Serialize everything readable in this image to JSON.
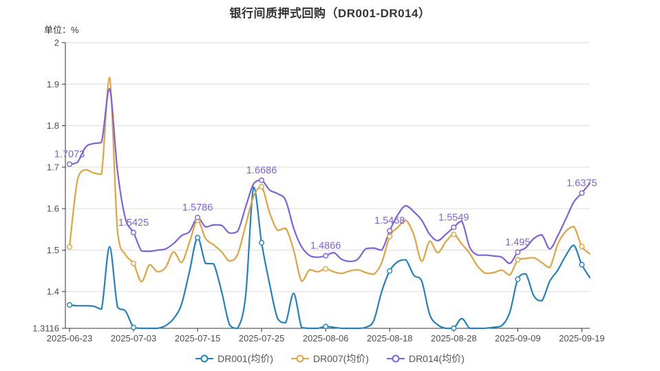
{
  "chart_data": {
    "type": "line",
    "title": "银行间质押式回购（DR001-DR014）",
    "unit_label": "单位：%",
    "grid": true,
    "legend_position": "bottom",
    "x": [
      "2025-06-23",
      "2025-06-24",
      "2025-06-25",
      "2025-06-26",
      "2025-06-27",
      "2025-06-30",
      "2025-07-01",
      "2025-07-02",
      "2025-07-03",
      "2025-07-04",
      "2025-07-07",
      "2025-07-08",
      "2025-07-09",
      "2025-07-10",
      "2025-07-11",
      "2025-07-14",
      "2025-07-15",
      "2025-07-16",
      "2025-07-17",
      "2025-07-18",
      "2025-07-21",
      "2025-07-22",
      "2025-07-23",
      "2025-07-24",
      "2025-07-25",
      "2025-07-28",
      "2025-07-29",
      "2025-07-30",
      "2025-07-31",
      "2025-08-01",
      "2025-08-04",
      "2025-08-05",
      "2025-08-06",
      "2025-08-07",
      "2025-08-08",
      "2025-08-11",
      "2025-08-12",
      "2025-08-13",
      "2025-08-14",
      "2025-08-15",
      "2025-08-18",
      "2025-08-19",
      "2025-08-20",
      "2025-08-21",
      "2025-08-22",
      "2025-08-25",
      "2025-08-26",
      "2025-08-27",
      "2025-08-28",
      "2025-08-29",
      "2025-09-01",
      "2025-09-02",
      "2025-09-03",
      "2025-09-04",
      "2025-09-05",
      "2025-09-08",
      "2025-09-09",
      "2025-09-10",
      "2025-09-11",
      "2025-09-12",
      "2025-09-15",
      "2025-09-16",
      "2025-09-17",
      "2025-09-18",
      "2025-09-19",
      "2025-09-22"
    ],
    "x_tick_indices": [
      0,
      8,
      16,
      24,
      32,
      40,
      48,
      56,
      64
    ],
    "x_tick_labels": [
      "2025-06-23",
      "2025-07-03",
      "2025-07-15",
      "2025-07-25",
      "2025-08-06",
      "2025-08-18",
      "2025-08-28",
      "2025-09-09",
      "2025-09-19"
    ],
    "y_axis": {
      "min": 1.3116,
      "max": 2,
      "tick_values": [
        2,
        1.9,
        1.8,
        1.7,
        1.6,
        1.5,
        1.4,
        1.3116
      ],
      "tick_labels": [
        "2",
        "1.9",
        "1.8",
        "1.7",
        "1.6",
        "1.5",
        "1.4",
        "1.3116"
      ]
    },
    "series": [
      {
        "name": "DR001(均价)",
        "color": "#2081c0",
        "values": [
          1.368,
          1.366,
          1.366,
          1.365,
          1.358,
          1.508,
          1.363,
          1.353,
          1.3137,
          1.3116,
          1.3116,
          1.3116,
          1.318,
          1.335,
          1.37,
          1.45,
          1.53,
          1.468,
          1.467,
          1.4,
          1.32,
          1.3116,
          1.39,
          1.652,
          1.518,
          1.418,
          1.335,
          1.325,
          1.396,
          1.3137,
          1.3116,
          1.3116,
          1.316,
          1.314,
          1.3116,
          1.3116,
          1.3116,
          1.314,
          1.33,
          1.4,
          1.45,
          1.472,
          1.477,
          1.44,
          1.425,
          1.345,
          1.32,
          1.3116,
          1.312,
          1.335,
          1.3116,
          1.3116,
          1.312,
          1.314,
          1.318,
          1.35,
          1.43,
          1.443,
          1.39,
          1.378,
          1.425,
          1.452,
          1.487,
          1.512,
          1.465,
          1.434
        ]
      },
      {
        "name": "DR007(均价)",
        "color": "#e0a43c",
        "values": [
          1.508,
          1.67,
          1.694,
          1.686,
          1.683,
          1.916,
          1.545,
          1.489,
          1.468,
          1.424,
          1.465,
          1.448,
          1.458,
          1.496,
          1.47,
          1.52,
          1.572,
          1.528,
          1.513,
          1.496,
          1.474,
          1.49,
          1.56,
          1.63,
          1.653,
          1.59,
          1.548,
          1.553,
          1.5,
          1.425,
          1.453,
          1.448,
          1.455,
          1.448,
          1.444,
          1.45,
          1.453,
          1.446,
          1.442,
          1.47,
          1.533,
          1.555,
          1.572,
          1.538,
          1.473,
          1.522,
          1.494,
          1.52,
          1.538,
          1.515,
          1.492,
          1.461,
          1.444,
          1.446,
          1.452,
          1.44,
          1.477,
          1.48,
          1.482,
          1.47,
          1.458,
          1.515,
          1.545,
          1.557,
          1.509,
          1.491
        ]
      },
      {
        "name": "DR014(均价)",
        "color": "#7c62e2",
        "values": [
          1.7073,
          1.712,
          1.748,
          1.757,
          1.76,
          1.889,
          1.69,
          1.575,
          1.5425,
          1.498,
          1.497,
          1.5,
          1.503,
          1.516,
          1.535,
          1.545,
          1.5786,
          1.556,
          1.561,
          1.56,
          1.541,
          1.545,
          1.604,
          1.66,
          1.6686,
          1.645,
          1.636,
          1.62,
          1.553,
          1.508,
          1.487,
          1.483,
          1.4866,
          1.494,
          1.478,
          1.473,
          1.478,
          1.503,
          1.505,
          1.5,
          1.5468,
          1.585,
          1.607,
          1.593,
          1.572,
          1.538,
          1.523,
          1.538,
          1.5549,
          1.57,
          1.507,
          1.488,
          1.488,
          1.486,
          1.483,
          1.468,
          1.495,
          1.506,
          1.528,
          1.537,
          1.503,
          1.535,
          1.575,
          1.616,
          1.6375,
          1.661
        ]
      }
    ],
    "annotations": {
      "series": "DR014(均价)",
      "at_tick_indices": true,
      "labels": [
        "1.7073",
        "1.5425",
        "1.5786",
        "1.6686",
        "1.4866",
        "1.5468",
        "1.5549",
        "1.495",
        "1.6375"
      ]
    },
    "colors": {
      "axis": "#333333",
      "gridline": "#dcdcdc",
      "tick_label": "#4d4d4d",
      "annotation": "#7c62e2"
    }
  }
}
